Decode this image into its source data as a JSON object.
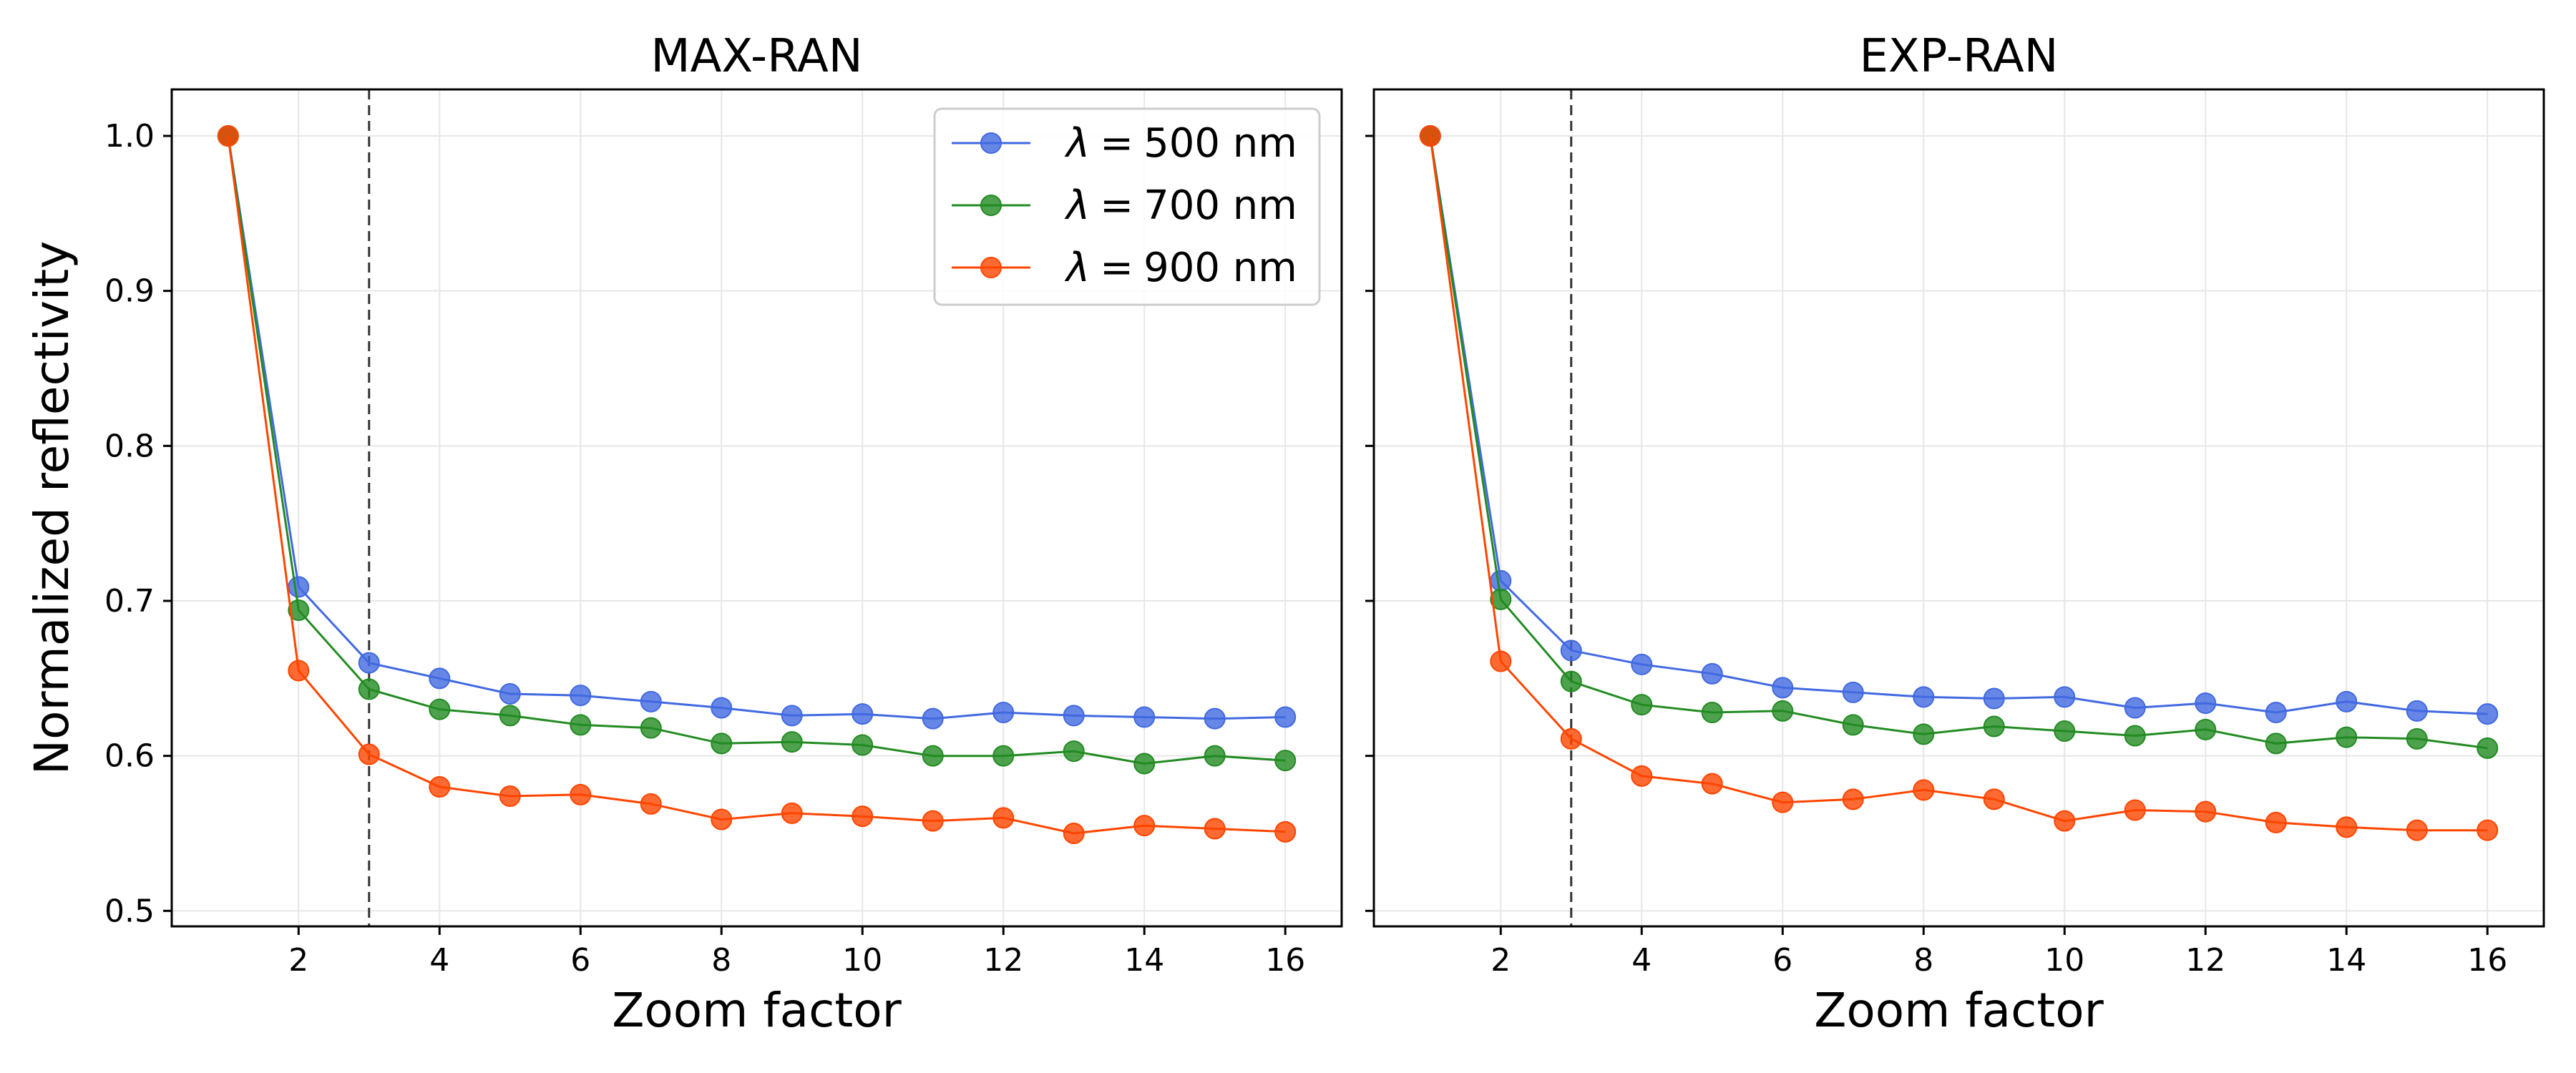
{
  "figure": {
    "ylabel": "Normalized reflectivity"
  },
  "chart_data": [
    {
      "type": "line",
      "title": "MAX-RAN",
      "xlabel": "Zoom factor",
      "ylabel": "Normalized reflectivity",
      "xlim": [
        0.2,
        16.8
      ],
      "ylim": [
        0.49,
        1.03
      ],
      "xticks": [
        2,
        4,
        6,
        8,
        10,
        12,
        14,
        16
      ],
      "yticks": [
        0.5,
        0.6,
        0.7,
        0.8,
        0.9,
        1.0
      ],
      "ytick_labels": [
        "0.5",
        "0.6",
        "0.7",
        "0.8",
        "0.9",
        "1.0"
      ],
      "grid": true,
      "vline_x": 3,
      "legend": "top-right",
      "x": [
        1,
        2,
        3,
        4,
        5,
        6,
        7,
        8,
        9,
        10,
        11,
        12,
        13,
        14,
        15,
        16
      ],
      "series": [
        {
          "name": "500 nm",
          "color": "#4169e1",
          "values": [
            1.0,
            0.709,
            0.66,
            0.65,
            0.64,
            0.639,
            0.635,
            0.631,
            0.626,
            0.627,
            0.624,
            0.628,
            0.626,
            0.625,
            0.624,
            0.625
          ]
        },
        {
          "name": "700 nm",
          "color": "#228b22",
          "values": [
            1.0,
            0.694,
            0.643,
            0.63,
            0.626,
            0.62,
            0.618,
            0.608,
            0.609,
            0.607,
            0.6,
            0.6,
            0.603,
            0.595,
            0.6,
            0.597
          ]
        },
        {
          "name": "900 nm",
          "color": "#ff4500",
          "values": [
            1.0,
            0.655,
            0.601,
            0.58,
            0.574,
            0.575,
            0.569,
            0.559,
            0.563,
            0.561,
            0.558,
            0.56,
            0.55,
            0.555,
            0.553,
            0.551
          ]
        }
      ]
    },
    {
      "type": "line",
      "title": "EXP-RAN",
      "xlabel": "Zoom factor",
      "xlim": [
        0.2,
        16.8
      ],
      "ylim": [
        0.49,
        1.03
      ],
      "xticks": [
        2,
        4,
        6,
        8,
        10,
        12,
        14,
        16
      ],
      "grid": true,
      "vline_x": 3,
      "x": [
        1,
        2,
        3,
        4,
        5,
        6,
        7,
        8,
        9,
        10,
        11,
        12,
        13,
        14,
        15,
        16
      ],
      "series": [
        {
          "name": "500 nm",
          "color": "#4169e1",
          "values": [
            1.0,
            0.713,
            0.668,
            0.659,
            0.653,
            0.644,
            0.641,
            0.638,
            0.637,
            0.638,
            0.631,
            0.634,
            0.628,
            0.635,
            0.629,
            0.627
          ]
        },
        {
          "name": "700 nm",
          "color": "#228b22",
          "values": [
            1.0,
            0.701,
            0.648,
            0.633,
            0.628,
            0.629,
            0.62,
            0.614,
            0.619,
            0.616,
            0.613,
            0.617,
            0.608,
            0.612,
            0.611,
            0.605
          ]
        },
        {
          "name": "900 nm",
          "color": "#ff4500",
          "values": [
            1.0,
            0.661,
            0.611,
            0.587,
            0.582,
            0.57,
            0.572,
            0.578,
            0.572,
            0.558,
            0.565,
            0.564,
            0.557,
            0.554,
            0.552,
            0.552
          ]
        }
      ]
    }
  ],
  "legend": {
    "symbol": "λ",
    "equals": "=",
    "entries": [
      "500 nm",
      "700 nm",
      "900 nm"
    ]
  }
}
